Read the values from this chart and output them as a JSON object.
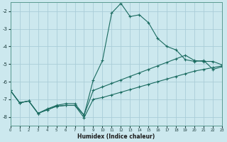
{
  "xlabel": "Humidex (Indice chaleur)",
  "bg_color": "#cce8ee",
  "grid_color": "#aacdd8",
  "line_color": "#1a6b60",
  "xlim": [
    0,
    23
  ],
  "ylim": [
    -8.5,
    -1.5
  ],
  "yticks": [
    -8,
    -7,
    -6,
    -5,
    -4,
    -3,
    -2
  ],
  "xticks": [
    0,
    1,
    2,
    3,
    4,
    5,
    6,
    7,
    8,
    9,
    10,
    11,
    12,
    13,
    14,
    15,
    16,
    17,
    18,
    19,
    20,
    21,
    22,
    23
  ],
  "series_hump_x": [
    0,
    1,
    2,
    3,
    4,
    5,
    6,
    7,
    8,
    9,
    10,
    11,
    12,
    13,
    14,
    15,
    16,
    17,
    18,
    19,
    20,
    21,
    22,
    23
  ],
  "series_hump_y": [
    -6.5,
    -7.2,
    -7.1,
    -7.8,
    -7.6,
    -7.4,
    -7.35,
    -7.35,
    -7.9,
    -5.9,
    -4.8,
    -2.1,
    -1.55,
    -2.3,
    -2.2,
    -2.65,
    -3.55,
    -4.0,
    -4.2,
    -4.75,
    -4.85,
    -4.8,
    -5.3,
    -5.15
  ],
  "series_mid_x": [
    0,
    1,
    2,
    3,
    4,
    5,
    6,
    7,
    8,
    9,
    10,
    11,
    12,
    13,
    14,
    15,
    16,
    17,
    18,
    19,
    20,
    21,
    22,
    23
  ],
  "series_mid_y": [
    -6.5,
    -7.2,
    -7.1,
    -7.8,
    -7.55,
    -7.35,
    -7.25,
    -7.25,
    -7.9,
    -6.5,
    -6.3,
    -6.1,
    -5.9,
    -5.7,
    -5.5,
    -5.3,
    -5.1,
    -4.9,
    -4.7,
    -4.5,
    -4.8,
    -4.85,
    -4.85,
    -5.05
  ],
  "series_low_x": [
    0,
    1,
    2,
    3,
    4,
    5,
    6,
    7,
    8,
    9,
    10,
    11,
    12,
    13,
    14,
    15,
    16,
    17,
    18,
    19,
    20,
    21,
    22,
    23
  ],
  "series_low_y": [
    -6.5,
    -7.2,
    -7.1,
    -7.8,
    -7.6,
    -7.4,
    -7.35,
    -7.35,
    -8.05,
    -7.0,
    -6.9,
    -6.75,
    -6.6,
    -6.45,
    -6.3,
    -6.15,
    -6.0,
    -5.85,
    -5.7,
    -5.55,
    -5.4,
    -5.3,
    -5.2,
    -5.1
  ]
}
